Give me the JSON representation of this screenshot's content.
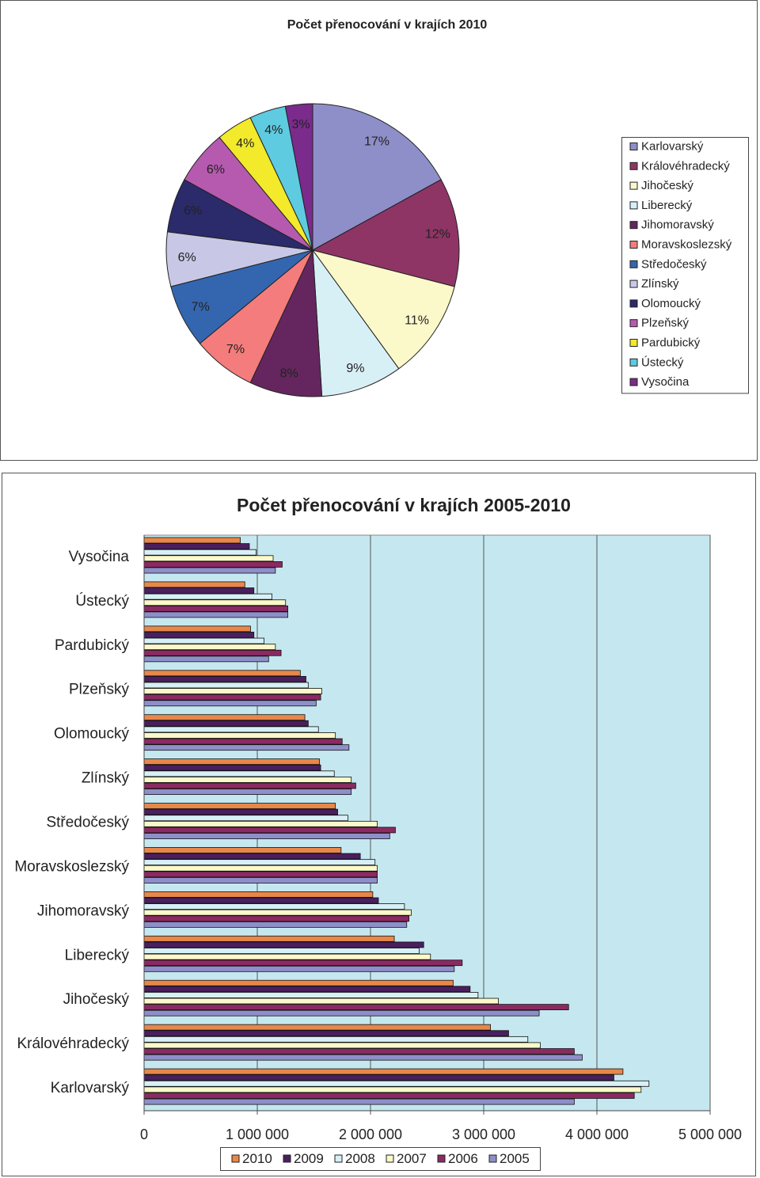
{
  "chart_data": [
    {
      "type": "pie",
      "title": "Počet přenocování v krajích 2010",
      "categories": [
        "Karlovarský",
        "Královéhradecký",
        "Jihočeský",
        "Liberecký",
        "Jihomoravský",
        "Moravskoslezský",
        "Středočeský",
        "Zlínský",
        "Olomoucký",
        "Plzeňský",
        "Pardubický",
        "Ústecký",
        "Vysočina"
      ],
      "values": [
        17,
        12,
        11,
        9,
        8,
        7,
        7,
        6,
        6,
        6,
        4,
        4,
        3
      ],
      "value_labels": [
        "17%",
        "12%",
        "11%",
        "9%",
        "8%",
        "7%",
        "7%",
        "6%",
        "6%",
        "6%",
        "4%",
        "4%",
        "3%"
      ],
      "colors": [
        "#8e8fc9",
        "#8e3566",
        "#fbf8c9",
        "#d7f0f6",
        "#65265f",
        "#f47c7c",
        "#3466b0",
        "#c8c8e6",
        "#2b2a6b",
        "#b65aaf",
        "#f2ea2a",
        "#5ecbe0",
        "#7b2b8c"
      ],
      "legend": "right"
    },
    {
      "type": "hbar",
      "title": "Počet přenocování v krajích 2005-2010",
      "categories": [
        "Vysočina",
        "Ústecký",
        "Pardubický",
        "Plzeňský",
        "Olomoucký",
        "Zlínský",
        "Středočeský",
        "Moravskoslezský",
        "Jihomoravský",
        "Liberecký",
        "Jihočeský",
        "Královéhradecký",
        "Karlovarský"
      ],
      "series": [
        {
          "name": "2010",
          "color": "#e8874a",
          "values": [
            850000,
            890000,
            940000,
            1380000,
            1420000,
            1550000,
            1690000,
            1740000,
            2020000,
            2210000,
            2730000,
            3060000,
            4230000
          ]
        },
        {
          "name": "2009",
          "color": "#4a1f5e",
          "values": [
            930000,
            970000,
            970000,
            1430000,
            1450000,
            1560000,
            1710000,
            1910000,
            2070000,
            2470000,
            2880000,
            3220000,
            4150000
          ]
        },
        {
          "name": "2008",
          "color": "#d7f0f6",
          "values": [
            990000,
            1130000,
            1060000,
            1450000,
            1540000,
            1680000,
            1800000,
            2040000,
            2300000,
            2430000,
            2950000,
            3390000,
            4460000
          ]
        },
        {
          "name": "2007",
          "color": "#fbf8c9",
          "values": [
            1140000,
            1250000,
            1160000,
            1570000,
            1690000,
            1830000,
            2060000,
            2060000,
            2360000,
            2530000,
            3130000,
            3500000,
            4390000
          ]
        },
        {
          "name": "2006",
          "color": "#8b2a62",
          "values": [
            1220000,
            1270000,
            1210000,
            1560000,
            1750000,
            1870000,
            2220000,
            2060000,
            2340000,
            2810000,
            3750000,
            3800000,
            4330000
          ]
        },
        {
          "name": "2005",
          "color": "#8e8fc9",
          "values": [
            1160000,
            1270000,
            1100000,
            1520000,
            1810000,
            1830000,
            2170000,
            2060000,
            2320000,
            2740000,
            3490000,
            3870000,
            3800000
          ]
        }
      ],
      "xlim": [
        0,
        5000000
      ],
      "xticks": [
        0,
        {
          "value": 1000000,
          "label": "1 000 000"
        },
        {
          "value": 2000000,
          "label": "2 000 000"
        },
        {
          "value": 3000000,
          "label": "3 000 000"
        },
        {
          "value": 4000000,
          "label": "4 000 000"
        },
        {
          "value": 5000000,
          "label": "5 000 000"
        }
      ],
      "grid": true,
      "legend": "bottom"
    }
  ]
}
